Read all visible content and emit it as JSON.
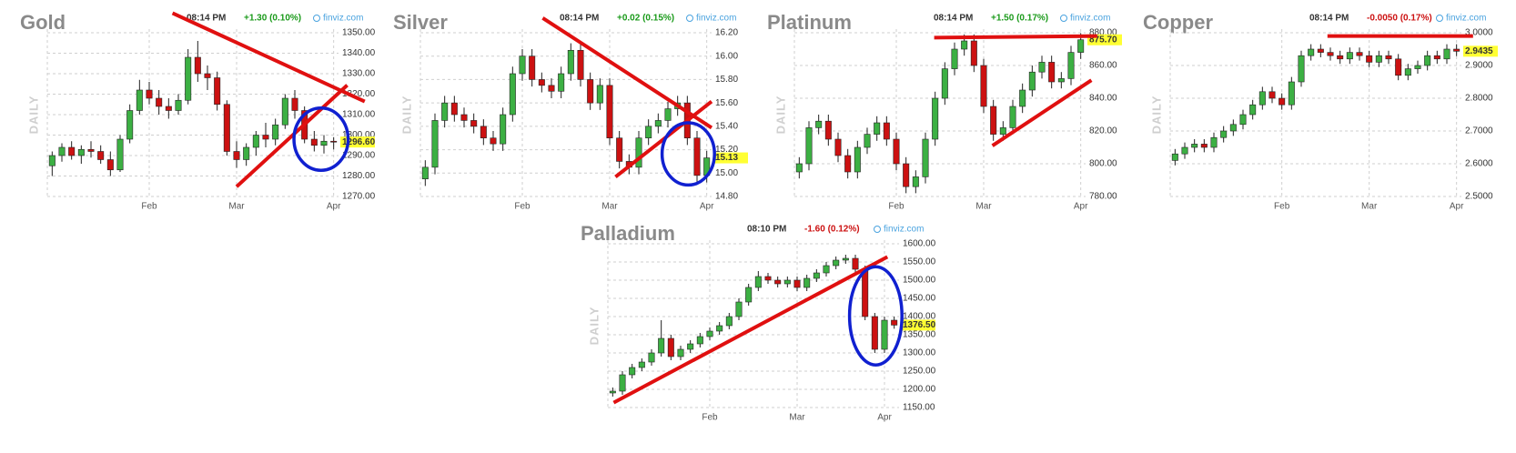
{
  "chart_data": [
    {
      "type": "candlestick",
      "title": "Gold",
      "time": "08:14 PM",
      "change": "+1.30 (0.10%)",
      "change_color": "#1a9a1a",
      "source": "finviz.com",
      "ylabel": "DAILY",
      "categories": [
        null,
        null,
        null,
        null,
        null,
        null,
        null,
        null,
        null,
        null,
        "Feb",
        null,
        null,
        null,
        null,
        null,
        null,
        null,
        null,
        "Mar",
        null,
        null,
        null,
        null,
        null,
        null,
        null,
        null,
        null,
        "Apr"
      ],
      "open": [
        1285,
        1290,
        1294,
        1290,
        1293,
        1292,
        1288,
        1283,
        1298,
        1312,
        1322,
        1318,
        1314,
        1312,
        1317,
        1338,
        1330,
        1328,
        1315,
        1292,
        1288,
        1294,
        1300,
        1298,
        1305,
        1318,
        1312,
        1298,
        1295,
        1297
      ],
      "high": [
        1292,
        1296,
        1297,
        1295,
        1297,
        1295,
        1292,
        1300,
        1315,
        1327,
        1326,
        1322,
        1318,
        1320,
        1342,
        1346,
        1334,
        1331,
        1317,
        1297,
        1296,
        1302,
        1306,
        1308,
        1320,
        1322,
        1314,
        1302,
        1300,
        1299
      ],
      "low": [
        1280,
        1287,
        1288,
        1286,
        1289,
        1286,
        1280,
        1282,
        1296,
        1310,
        1315,
        1310,
        1308,
        1310,
        1315,
        1326,
        1322,
        1312,
        1290,
        1284,
        1285,
        1290,
        1294,
        1295,
        1303,
        1308,
        1296,
        1292,
        1291,
        1293
      ],
      "close": [
        1290,
        1294,
        1290,
        1293,
        1292,
        1288,
        1283,
        1298,
        1312,
        1322,
        1318,
        1314,
        1312,
        1317,
        1338,
        1330,
        1328,
        1315,
        1292,
        1288,
        1294,
        1300,
        1298,
        1305,
        1318,
        1312,
        1298,
        1295,
        1297,
        1296.6
      ],
      "up_color": "#3cb043",
      "down_color": "#cc1111",
      "grid": true,
      "last_label": "1296.60",
      "ylim": [
        1270,
        1350
      ],
      "yticks": [
        {
          "value": 1270,
          "label": "1270.00"
        },
        {
          "value": 1280,
          "label": "1280.00"
        },
        {
          "value": 1290,
          "label": "1290.00"
        },
        {
          "value": 1300,
          "label": "1300.00"
        },
        {
          "value": 1310,
          "label": "1310.00"
        },
        {
          "value": 1320,
          "label": "1320.00"
        },
        {
          "value": 1330,
          "label": "1330.00"
        },
        {
          "value": 1340,
          "label": "1340.00"
        },
        {
          "value": 1350,
          "label": "1350.00"
        }
      ]
    },
    {
      "type": "candlestick",
      "title": "Silver",
      "time": "08:14 PM",
      "change": "+0.02 (0.15%)",
      "change_color": "#1a9a1a",
      "source": "finviz.com",
      "ylabel": "DAILY",
      "categories": [
        null,
        null,
        null,
        null,
        null,
        null,
        null,
        null,
        null,
        null,
        "Feb",
        null,
        null,
        null,
        null,
        null,
        null,
        null,
        null,
        "Mar",
        null,
        null,
        null,
        null,
        null,
        null,
        null,
        null,
        null,
        "Apr"
      ],
      "open": [
        14.95,
        15.05,
        15.45,
        15.6,
        15.5,
        15.45,
        15.4,
        15.3,
        15.25,
        15.5,
        15.85,
        16.0,
        15.8,
        15.75,
        15.7,
        15.85,
        16.05,
        15.8,
        15.6,
        15.75,
        15.3,
        15.1,
        15.05,
        15.3,
        15.4,
        15.45,
        15.55,
        15.6,
        15.3,
        14.98
      ],
      "high": [
        15.11,
        15.51,
        15.66,
        15.66,
        15.56,
        15.51,
        15.46,
        15.36,
        15.56,
        15.91,
        16.06,
        16.06,
        15.86,
        15.81,
        15.91,
        16.11,
        16.11,
        15.86,
        15.81,
        15.81,
        15.36,
        15.16,
        15.36,
        15.46,
        15.51,
        15.61,
        15.66,
        15.66,
        15.36,
        15.19
      ],
      "low": [
        14.89,
        14.99,
        15.39,
        15.44,
        15.39,
        15.34,
        15.24,
        15.19,
        15.19,
        15.44,
        15.79,
        15.74,
        15.69,
        15.64,
        15.64,
        15.79,
        15.74,
        15.54,
        15.54,
        15.24,
        15.04,
        14.99,
        14.99,
        15.24,
        15.34,
        15.39,
        15.49,
        15.24,
        14.92,
        14.92
      ],
      "close": [
        15.05,
        15.45,
        15.6,
        15.5,
        15.45,
        15.4,
        15.3,
        15.25,
        15.5,
        15.85,
        16.0,
        15.8,
        15.75,
        15.7,
        15.85,
        16.05,
        15.8,
        15.6,
        15.75,
        15.3,
        15.1,
        15.05,
        15.3,
        15.4,
        15.45,
        15.55,
        15.6,
        15.3,
        14.98,
        15.13
      ],
      "up_color": "#3cb043",
      "down_color": "#cc1111",
      "grid": true,
      "last_label": "15.13",
      "ylim": [
        14.8,
        16.2
      ],
      "yticks": [
        {
          "value": 14.8,
          "label": "14.80"
        },
        {
          "value": 15,
          "label": "15.00"
        },
        {
          "value": 15.2,
          "label": "15.20"
        },
        {
          "value": 15.4,
          "label": "15.40"
        },
        {
          "value": 15.6,
          "label": "15.60"
        },
        {
          "value": 15.8,
          "label": "15.80"
        },
        {
          "value": 16,
          "label": "16.00"
        },
        {
          "value": 16.2,
          "label": "16.20"
        }
      ]
    },
    {
      "type": "candlestick",
      "title": "Platinum",
      "time": "08:14 PM",
      "change": "+1.50 (0.17%)",
      "change_color": "#1a9a1a",
      "source": "finviz.com",
      "ylabel": "DAILY",
      "categories": [
        null,
        null,
        null,
        null,
        null,
        null,
        null,
        null,
        null,
        null,
        "Feb",
        null,
        null,
        null,
        null,
        null,
        null,
        null,
        null,
        "Mar",
        null,
        null,
        null,
        null,
        null,
        null,
        null,
        null,
        null,
        "Apr"
      ],
      "open": [
        795,
        800,
        822,
        826,
        815,
        805,
        795,
        810,
        818,
        825,
        815,
        800,
        786,
        792,
        815,
        840,
        858,
        870,
        875,
        860,
        835,
        818,
        822,
        835,
        845,
        856,
        862,
        850,
        852,
        868
      ],
      "high": [
        804,
        826,
        830,
        830,
        819,
        809,
        814,
        822,
        829,
        829,
        819,
        804,
        796,
        819,
        844,
        862,
        874,
        879,
        879,
        864,
        839,
        826,
        839,
        849,
        860,
        866,
        866,
        856,
        872,
        879.7
      ],
      "low": [
        791,
        796,
        818,
        811,
        801,
        791,
        791,
        806,
        814,
        811,
        796,
        782,
        782,
        788,
        811,
        836,
        854,
        866,
        856,
        831,
        814,
        814,
        818,
        831,
        841,
        852,
        846,
        846,
        848,
        864
      ],
      "close": [
        800,
        822,
        826,
        815,
        805,
        795,
        810,
        818,
        825,
        815,
        800,
        786,
        792,
        815,
        840,
        858,
        870,
        875,
        860,
        835,
        818,
        822,
        835,
        845,
        856,
        862,
        850,
        852,
        868,
        875.7
      ],
      "up_color": "#3cb043",
      "down_color": "#cc1111",
      "grid": true,
      "last_label": "875.70",
      "ylim": [
        780,
        880
      ],
      "yticks": [
        {
          "value": 780,
          "label": "780.00"
        },
        {
          "value": 800,
          "label": "800.00"
        },
        {
          "value": 820,
          "label": "820.00"
        },
        {
          "value": 840,
          "label": "840.00"
        },
        {
          "value": 860,
          "label": "860.00"
        },
        {
          "value": 880,
          "label": "880.00"
        }
      ]
    },
    {
      "type": "candlestick",
      "title": "Copper",
      "time": "08:14 PM",
      "change": "-0.0050 (0.17%)",
      "change_color": "#cc1111",
      "source": "finviz.com",
      "ylabel": "DAILY",
      "categories": [
        null,
        null,
        null,
        null,
        null,
        null,
        null,
        null,
        null,
        null,
        null,
        "Feb",
        null,
        null,
        null,
        null,
        null,
        null,
        null,
        null,
        "Mar",
        null,
        null,
        null,
        null,
        null,
        null,
        null,
        null,
        "Apr"
      ],
      "open": [
        2.61,
        2.63,
        2.65,
        2.66,
        2.65,
        2.68,
        2.7,
        2.72,
        2.75,
        2.78,
        2.82,
        2.8,
        2.78,
        2.85,
        2.93,
        2.95,
        2.94,
        2.93,
        2.92,
        2.94,
        2.93,
        2.91,
        2.93,
        2.92,
        2.87,
        2.89,
        2.9,
        2.93,
        2.92,
        2.95
      ],
      "high": [
        2.645,
        2.665,
        2.675,
        2.675,
        2.695,
        2.715,
        2.735,
        2.765,
        2.795,
        2.835,
        2.835,
        2.815,
        2.865,
        2.945,
        2.965,
        2.965,
        2.955,
        2.945,
        2.955,
        2.955,
        2.945,
        2.945,
        2.945,
        2.935,
        2.905,
        2.915,
        2.945,
        2.945,
        2.965,
        2.965
      ],
      "low": [
        2.595,
        2.615,
        2.635,
        2.635,
        2.635,
        2.665,
        2.685,
        2.705,
        2.735,
        2.765,
        2.785,
        2.765,
        2.765,
        2.835,
        2.915,
        2.925,
        2.915,
        2.905,
        2.905,
        2.915,
        2.895,
        2.895,
        2.905,
        2.855,
        2.855,
        2.875,
        2.885,
        2.905,
        2.905,
        2.9285
      ],
      "close": [
        2.63,
        2.65,
        2.66,
        2.65,
        2.68,
        2.7,
        2.72,
        2.75,
        2.78,
        2.82,
        2.8,
        2.78,
        2.85,
        2.93,
        2.95,
        2.94,
        2.93,
        2.92,
        2.94,
        2.93,
        2.91,
        2.93,
        2.92,
        2.87,
        2.89,
        2.9,
        2.93,
        2.92,
        2.95,
        2.9435
      ],
      "up_color": "#3cb043",
      "down_color": "#cc1111",
      "grid": true,
      "last_label": "2.9435",
      "ylim": [
        2.5,
        3.0
      ],
      "yticks": [
        {
          "value": 2.5,
          "label": "2.5000"
        },
        {
          "value": 2.6,
          "label": "2.6000"
        },
        {
          "value": 2.7,
          "label": "2.7000"
        },
        {
          "value": 2.8,
          "label": "2.8000"
        },
        {
          "value": 2.9,
          "label": "2.9000"
        },
        {
          "value": 3,
          "label": "3.0000"
        }
      ]
    },
    {
      "type": "candlestick",
      "title": "Palladium",
      "time": "08:10 PM",
      "change": "-1.60 (0.12%)",
      "change_color": "#cc1111",
      "source": "finviz.com",
      "ylabel": "DAILY",
      "categories": [
        null,
        null,
        null,
        null,
        null,
        null,
        null,
        null,
        null,
        null,
        "Feb",
        null,
        null,
        null,
        null,
        null,
        null,
        null,
        null,
        "Mar",
        null,
        null,
        null,
        null,
        null,
        null,
        null,
        null,
        "Apr",
        null
      ],
      "open": [
        1190,
        1195,
        1240,
        1260,
        1275,
        1300,
        1340,
        1290,
        1310,
        1325,
        1345,
        1360,
        1375,
        1400,
        1440,
        1480,
        1510,
        1500,
        1490,
        1500,
        1480,
        1505,
        1520,
        1540,
        1555,
        1560,
        1530,
        1400,
        1310,
        1390
      ],
      "high": [
        1205,
        1250,
        1270,
        1285,
        1310,
        1390,
        1350,
        1320,
        1335,
        1355,
        1370,
        1385,
        1410,
        1450,
        1490,
        1525,
        1520,
        1510,
        1510,
        1510,
        1515,
        1530,
        1550,
        1565,
        1570,
        1570,
        1540,
        1410,
        1400,
        1400
      ],
      "low": [
        1180,
        1185,
        1230,
        1250,
        1265,
        1290,
        1280,
        1280,
        1300,
        1315,
        1335,
        1350,
        1365,
        1390,
        1430,
        1470,
        1490,
        1480,
        1480,
        1470,
        1470,
        1495,
        1510,
        1530,
        1545,
        1520,
        1390,
        1300,
        1300,
        1366.5
      ],
      "close": [
        1195,
        1240,
        1260,
        1275,
        1300,
        1340,
        1290,
        1310,
        1325,
        1345,
        1360,
        1375,
        1400,
        1440,
        1480,
        1510,
        1500,
        1490,
        1500,
        1480,
        1505,
        1520,
        1540,
        1555,
        1560,
        1530,
        1400,
        1310,
        1390,
        1376.5
      ],
      "up_color": "#3cb043",
      "down_color": "#cc1111",
      "grid": true,
      "last_label": "1376.50",
      "ylim": [
        1150,
        1600
      ],
      "yticks": [
        {
          "value": 1150,
          "label": "1150.00"
        },
        {
          "value": 1200,
          "label": "1200.00"
        },
        {
          "value": 1250,
          "label": "1250.00"
        },
        {
          "value": 1300,
          "label": "1300.00"
        },
        {
          "value": 1350,
          "label": "1350.00"
        },
        {
          "value": 1400,
          "label": "1400.00"
        },
        {
          "value": 1450,
          "label": "1450.00"
        },
        {
          "value": 1500,
          "label": "1500.00"
        },
        {
          "value": 1550,
          "label": "1550.00"
        },
        {
          "value": 1600,
          "label": "1600.00"
        }
      ]
    }
  ]
}
